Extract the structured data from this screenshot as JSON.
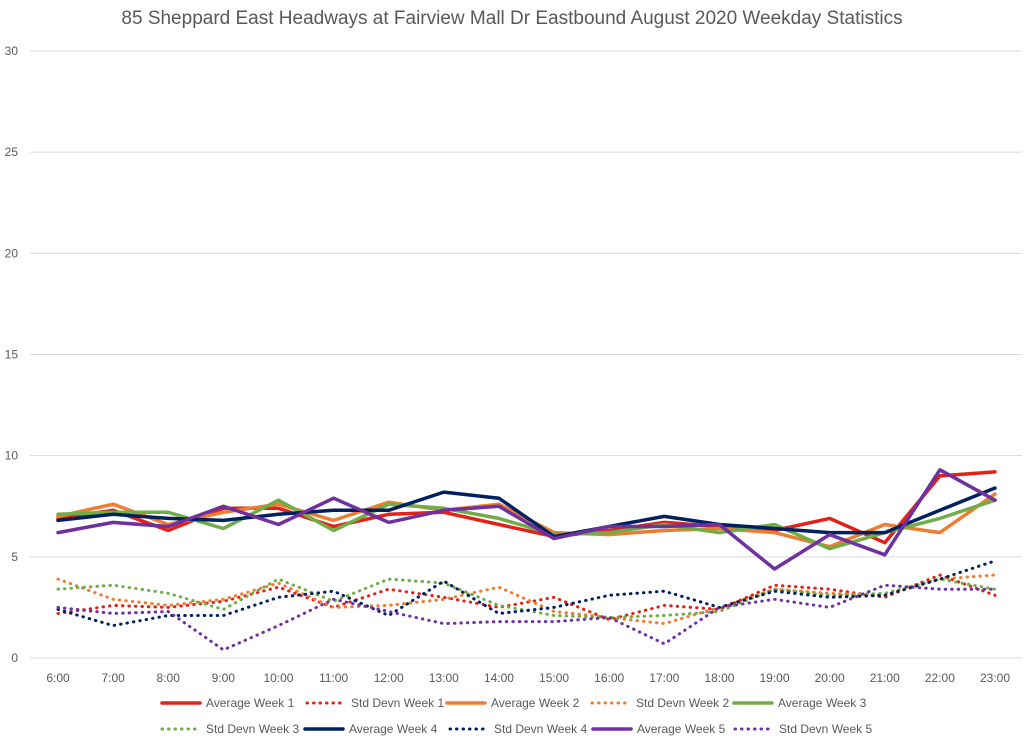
{
  "chart_data": {
    "type": "line",
    "title": "85 Sheppard East Headways at Fairview Mall Dr Eastbound August 2020 Weekday Statistics",
    "xlabel": "",
    "ylabel": "",
    "ylim": [
      0,
      30
    ],
    "yticks": [
      0,
      5,
      10,
      15,
      20,
      25,
      30
    ],
    "grid": true,
    "legend_position": "bottom",
    "categories": [
      "6:00",
      "7:00",
      "8:00",
      "9:00",
      "10:00",
      "11:00",
      "12:00",
      "13:00",
      "14:00",
      "15:00",
      "16:00",
      "17:00",
      "18:00",
      "19:00",
      "20:00",
      "21:00",
      "22:00",
      "23:00"
    ],
    "series": [
      {
        "name": "Average Week 1",
        "color": "#e32119",
        "style": "solid",
        "values": [
          6.9,
          7.3,
          6.3,
          7.4,
          7.4,
          6.5,
          7.1,
          7.2,
          6.6,
          6.0,
          6.3,
          6.7,
          6.5,
          6.3,
          6.9,
          5.7,
          9.0,
          9.2
        ]
      },
      {
        "name": "Std Devn Week 1",
        "color": "#e32119",
        "style": "dotted",
        "values": [
          2.2,
          2.6,
          2.5,
          2.8,
          3.5,
          2.5,
          3.4,
          3.0,
          2.5,
          3.0,
          1.9,
          2.6,
          2.4,
          3.6,
          3.4,
          3.0,
          4.1,
          3.1
        ]
      },
      {
        "name": "Average Week 2",
        "color": "#ed7d31",
        "style": "solid",
        "values": [
          7.0,
          7.6,
          6.6,
          7.2,
          7.6,
          6.8,
          7.7,
          7.3,
          7.6,
          6.2,
          6.1,
          6.3,
          6.4,
          6.2,
          5.5,
          6.6,
          6.2,
          8.1
        ]
      },
      {
        "name": "Std Devn Week 2",
        "color": "#ed7d31",
        "style": "dotted",
        "values": [
          3.9,
          2.9,
          2.6,
          2.9,
          3.7,
          2.5,
          2.6,
          2.9,
          3.5,
          2.3,
          2.0,
          1.7,
          2.5,
          3.4,
          3.2,
          3.1,
          3.9,
          4.1
        ]
      },
      {
        "name": "Average Week 3",
        "color": "#70ad47",
        "style": "solid",
        "values": [
          7.1,
          7.2,
          7.2,
          6.4,
          7.8,
          6.3,
          7.6,
          7.4,
          6.9,
          6.1,
          6.2,
          6.6,
          6.2,
          6.6,
          5.4,
          6.2,
          6.9,
          7.8
        ]
      },
      {
        "name": "Std Devn Week 3",
        "color": "#70ad47",
        "style": "dotted",
        "values": [
          3.4,
          3.6,
          3.2,
          2.4,
          3.9,
          2.8,
          3.9,
          3.7,
          2.6,
          2.1,
          2.0,
          2.1,
          2.3,
          3.4,
          3.1,
          3.2,
          3.9,
          3.4
        ]
      },
      {
        "name": "Average Week 4",
        "color": "#002060",
        "style": "solid",
        "values": [
          6.8,
          7.1,
          6.9,
          6.8,
          7.1,
          7.3,
          7.3,
          8.2,
          7.9,
          6.0,
          6.5,
          7.0,
          6.6,
          6.4,
          6.2,
          6.2,
          7.3,
          8.4
        ]
      },
      {
        "name": "Std Devn Week 4",
        "color": "#002060",
        "style": "dotted",
        "values": [
          2.4,
          1.6,
          2.1,
          2.1,
          3.0,
          3.3,
          2.1,
          3.8,
          2.2,
          2.5,
          3.1,
          3.3,
          2.5,
          3.3,
          3.0,
          3.1,
          3.9,
          4.8
        ]
      },
      {
        "name": "Average Week 5",
        "color": "#7030a0",
        "style": "solid",
        "values": [
          6.2,
          6.7,
          6.5,
          7.5,
          6.6,
          7.9,
          6.7,
          7.3,
          7.5,
          5.9,
          6.5,
          6.5,
          6.6,
          4.4,
          6.1,
          5.1,
          9.3,
          7.8
        ]
      },
      {
        "name": "Std Devn Week 5",
        "color": "#7030a0",
        "style": "dotted",
        "values": [
          2.5,
          2.2,
          2.3,
          0.4,
          1.6,
          2.9,
          2.3,
          1.7,
          1.8,
          1.8,
          2.0,
          0.7,
          2.5,
          2.9,
          2.5,
          3.6,
          3.4,
          3.4
        ]
      }
    ]
  }
}
